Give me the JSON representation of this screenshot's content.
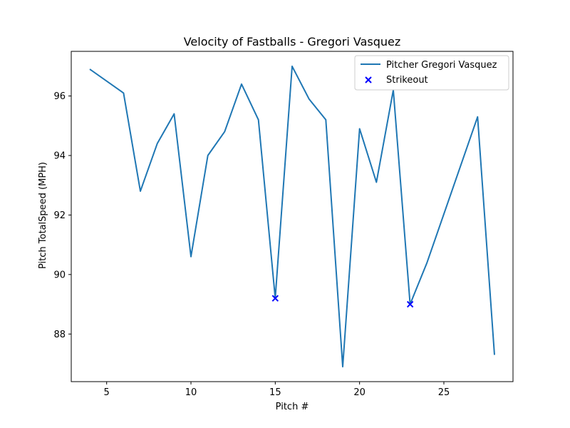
{
  "chart_data": {
    "type": "line",
    "title": "Velocity of Fastballs - Gregori Vasquez",
    "xlabel": "Pitch #",
    "ylabel": "Pitch TotalSpeed (MPH)",
    "xlim": [
      2.9,
      29.1
    ],
    "ylim": [
      86.4,
      97.5
    ],
    "x_ticks": [
      5,
      10,
      15,
      20,
      25
    ],
    "y_ticks": [
      88,
      90,
      92,
      94,
      96
    ],
    "grid": false,
    "legend_position": "upper right",
    "series": [
      {
        "name": "Pitcher Gregori Vasquez",
        "kind": "line",
        "color": "#1f77b4",
        "x": [
          4,
          6,
          7,
          8,
          9,
          10,
          11,
          12,
          13,
          14,
          15,
          16,
          17,
          18,
          19,
          20,
          21,
          22,
          23,
          24,
          27,
          28
        ],
        "y": [
          96.9,
          96.1,
          92.8,
          94.4,
          95.4,
          90.6,
          94.0,
          94.8,
          96.4,
          95.2,
          89.2,
          97.0,
          95.9,
          95.2,
          86.9,
          94.9,
          93.1,
          96.2,
          89.0,
          90.4,
          95.3,
          87.3
        ]
      },
      {
        "name": "Strikeout",
        "kind": "scatter",
        "marker": "x",
        "color": "#0000ff",
        "x": [
          15,
          23
        ],
        "y": [
          89.2,
          89.0
        ]
      }
    ]
  }
}
